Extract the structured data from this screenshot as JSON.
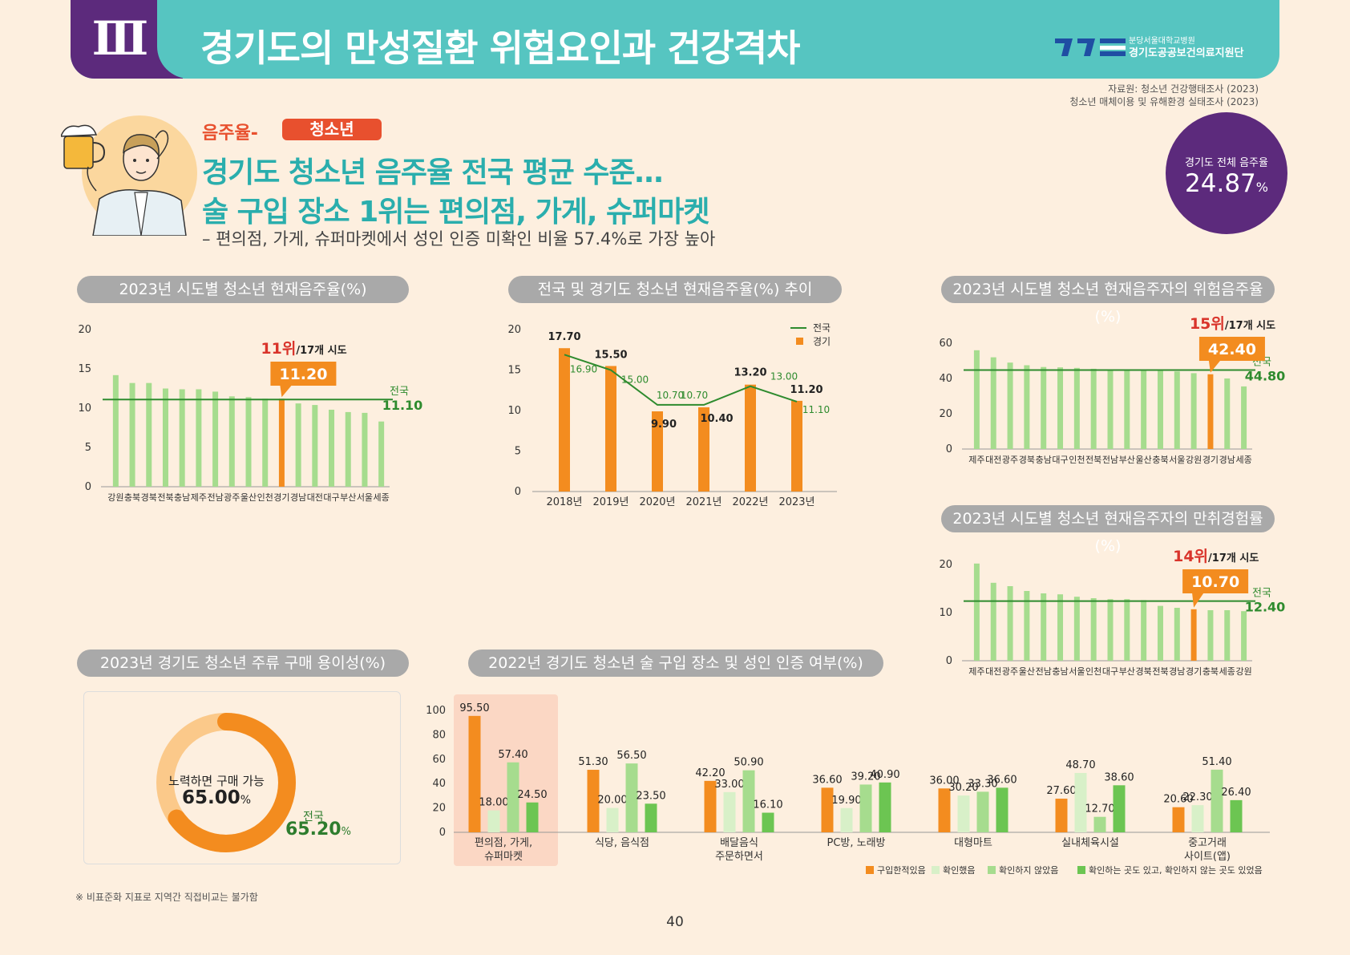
{
  "header": {
    "section_numeral": "Ⅲ",
    "title": "경기도의 만성질환 위험요인과 건강격차",
    "logo_line1": "분당서울대학교병원",
    "logo_line2": "경기도공공보건의료지원단"
  },
  "source": {
    "line1": "자료원: 청소년 건강행태조사 (2023)",
    "line2": "청소년 매체이용 및 유해환경 실태조사 (2023)"
  },
  "intro": {
    "kicker": "음주율-",
    "tag": "청소년",
    "headline1": "경기도 청소년 음주율 전국 평균 수준…",
    "headline2": "술 구입 장소 1위는 편의점, 가게, 슈퍼마켓",
    "subline": "– 편의점, 가게, 슈퍼마켓에서 성인 인증 미확인 비율 57.4%로 가장 높아"
  },
  "total_rate": {
    "label": "경기도 전체 음주율",
    "value": "24.87",
    "unit": "%"
  },
  "pills": {
    "chart1": "2023년 시도별 청소년 현재음주율(%)",
    "chart2": "전국 및 경기도 청소년 현재음주율(%) 추이",
    "chart3": "2023년 시도별 청소년 현재음주자의 위험음주율(%)",
    "chart4": "2023년 시도별 청소년 현재음주자의 만취경험률(%)",
    "chart5": "2023년 경기도 청소년 주류 구매 용이성(%)",
    "chart6": "2022년 경기도 청소년 술 구입 장소 및 성인 인증 여부(%)"
  },
  "colors": {
    "bar_light": "#a6dc8e",
    "bar_highlight": "#f38c1f",
    "national_line": "#2e8b2e",
    "rank_red": "#d9342b",
    "legend_light": "#d8f0c8",
    "legend_mid": "#a6dc8e",
    "legend_dark": "#6cc552"
  },
  "chart_data": [
    {
      "id": "chart1",
      "type": "bar",
      "categories": [
        "강원",
        "충북",
        "경북",
        "전북",
        "충남",
        "제주",
        "전남",
        "광주",
        "울산",
        "인천",
        "경기",
        "경남",
        "대전",
        "대구",
        "부산",
        "서울",
        "세종"
      ],
      "values": [
        14.2,
        13.2,
        13.2,
        12.5,
        12.4,
        12.4,
        12.1,
        11.5,
        11.4,
        11.2,
        11.2,
        10.6,
        10.4,
        9.8,
        9.5,
        9.4,
        8.3
      ],
      "highlight": "경기",
      "highlight_label": "11.20",
      "rank": "11위",
      "rank_suffix": "/17개 시도",
      "national": 11.1,
      "national_label": "전국",
      "national_value_label": "11.10",
      "yticks": [
        0,
        5,
        10,
        15,
        20
      ],
      "ylim": [
        0,
        20
      ]
    },
    {
      "id": "chart2",
      "type": "bar+line",
      "categories": [
        "2018년",
        "2019년",
        "2020년",
        "2021년",
        "2022년",
        "2023년"
      ],
      "series": [
        {
          "name": "경기",
          "type": "bar",
          "values": [
            17.7,
            15.5,
            9.9,
            10.4,
            13.2,
            11.2
          ],
          "labels": [
            "17.70",
            "15.50",
            "9.90",
            "10.40",
            "13.20",
            "11.20"
          ]
        },
        {
          "name": "전국",
          "type": "line",
          "values": [
            16.9,
            15.0,
            10.7,
            10.7,
            13.0,
            11.1
          ],
          "labels": [
            "16.90",
            "15.00",
            "10.70",
            "10.70",
            "13.00",
            "11.10"
          ]
        }
      ],
      "yticks": [
        0,
        5,
        10,
        15,
        20
      ],
      "ylim": [
        0,
        20
      ]
    },
    {
      "id": "chart3",
      "type": "bar",
      "categories": [
        "제주",
        "대전",
        "광주",
        "경북",
        "충남",
        "대구",
        "인천",
        "전북",
        "전남",
        "부산",
        "울산",
        "충북",
        "서울",
        "강원",
        "경기",
        "경남",
        "세종"
      ],
      "values": [
        56.0,
        52.0,
        49.0,
        47.5,
        46.5,
        46.3,
        46.0,
        45.5,
        45.0,
        44.8,
        44.5,
        44.3,
        44.0,
        43.0,
        42.4,
        40.0,
        35.5
      ],
      "highlight": "경기",
      "highlight_label": "42.40",
      "rank": "15위",
      "rank_suffix": "/17개 시도",
      "national": 44.8,
      "national_label": "전국",
      "national_value_label": "44.80",
      "yticks": [
        0,
        20,
        40,
        60
      ],
      "ylim": [
        0,
        60
      ]
    },
    {
      "id": "chart4",
      "type": "bar",
      "categories": [
        "제주",
        "대전",
        "광주",
        "울산",
        "전남",
        "충남",
        "서울",
        "인천",
        "대구",
        "부산",
        "경북",
        "전북",
        "경남",
        "경기",
        "충북",
        "세종",
        "강원"
      ],
      "values": [
        20.2,
        16.2,
        15.5,
        14.5,
        14.0,
        13.8,
        13.3,
        13.0,
        12.8,
        12.8,
        12.6,
        11.4,
        11.0,
        10.7,
        10.5,
        10.5,
        10.3
      ],
      "highlight": "경기",
      "highlight_label": "10.70",
      "rank": "14위",
      "rank_suffix": "/17개 시도",
      "national": 12.4,
      "national_label": "전국",
      "national_value_label": "12.40",
      "yticks": [
        0,
        10,
        20
      ],
      "ylim": [
        0,
        20
      ]
    },
    {
      "id": "chart5",
      "type": "pie",
      "center_label": "노력하면 구매 가능",
      "value": 65.0,
      "value_label": "65.00",
      "unit": "%",
      "national_label": "전국",
      "national_value_label": "65.20"
    },
    {
      "id": "chart6",
      "type": "bar",
      "categories": [
        "편의점, 가게,\n슈퍼마켓",
        "식당, 음식점",
        "배달음식\n주문하면서",
        "PC방, 노래방",
        "대형마트",
        "실내체육시설",
        "중고거래\n사이트(앱)"
      ],
      "series": [
        {
          "name": "구입한적있음",
          "values": [
            95.5,
            51.3,
            42.2,
            36.6,
            36.0,
            27.6,
            20.6
          ],
          "labels": [
            "95.50",
            "51.30",
            "42.20",
            "36.60",
            "36.00",
            "27.60",
            "20.60"
          ]
        },
        {
          "name": "확인했음",
          "values": [
            18.0,
            20.0,
            33.0,
            19.9,
            30.2,
            48.7,
            22.3
          ],
          "labels": [
            "18.00",
            "20.00",
            "33.00",
            "19.90",
            "30.20",
            "48.70",
            "22.30"
          ]
        },
        {
          "name": "확인하지 않았음",
          "values": [
            57.4,
            56.5,
            50.9,
            39.2,
            33.3,
            12.7,
            51.4
          ],
          "labels": [
            "57.40",
            "56.50",
            "50.90",
            "39.20",
            "33.30",
            "12.70",
            "51.40"
          ]
        },
        {
          "name": "확인하는 곳도 있고, 확인하지 않는 곳도 있었음",
          "values": [
            24.5,
            23.5,
            16.1,
            40.9,
            36.6,
            38.6,
            26.4
          ],
          "labels": [
            "24.50",
            "23.50",
            "16.10",
            "40.90",
            "36.60",
            "38.60",
            "26.40"
          ]
        }
      ],
      "yticks": [
        0,
        20,
        40,
        60,
        80,
        100
      ],
      "ylim": [
        0,
        100
      ]
    }
  ],
  "footnote": "※ 비표준화 지표로 지역간 직접비교는 불가함",
  "page_number": "40"
}
